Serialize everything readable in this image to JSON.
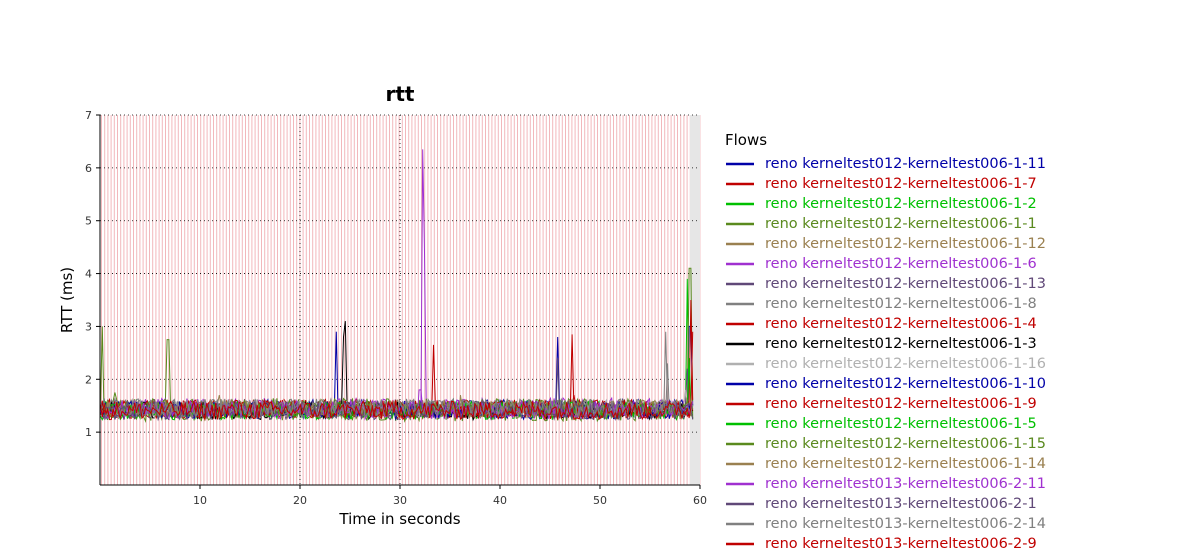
{
  "chart_data": {
    "type": "line",
    "title": "rtt",
    "xlabel": "Time in seconds",
    "ylabel": "RTT (ms)",
    "xlim": [
      0,
      60
    ],
    "ylim": [
      0,
      7
    ],
    "x_ticks": [
      10,
      20,
      30,
      40,
      50,
      60
    ],
    "y_ticks": [
      1,
      2,
      3,
      4,
      5,
      6,
      7
    ],
    "grid": "dotted major gridlines at x=20,30 and each y tick",
    "legend_title": "Flows",
    "legend_position": "right",
    "baseline_band": [
      1.1,
      1.6
    ],
    "series": [
      {
        "name": "reno kerneltest012-kerneltest006-1-11",
        "color": "#0000a8",
        "spikes": [
          [
            23.7,
            2.9
          ],
          [
            59.0,
            3.0
          ]
        ]
      },
      {
        "name": "reno kerneltest012-kerneltest006-1-7",
        "color": "#c00000",
        "spikes": [
          [
            33.3,
            2.65
          ],
          [
            58.6,
            1.7
          ]
        ]
      },
      {
        "name": "reno kerneltest012-kerneltest006-1-2",
        "color": "#00c000",
        "spikes": [
          [
            58.8,
            3.9
          ],
          [
            59.2,
            1.6
          ]
        ]
      },
      {
        "name": "reno kerneltest012-kerneltest006-1-1",
        "color": "#5a8a1e",
        "spikes": [
          [
            0.2,
            3.0
          ],
          [
            6.8,
            2.75
          ],
          [
            59.0,
            4.1
          ]
        ]
      },
      {
        "name": "reno kerneltest012-kerneltest006-1-12",
        "color": "#9a8050",
        "spikes": [
          [
            12.0,
            1.7
          ]
        ]
      },
      {
        "name": "reno kerneltest012-kerneltest006-1-6",
        "color": "#a030d0",
        "spikes": [
          [
            32.2,
            6.35
          ],
          [
            32.5,
            4.4
          ]
        ]
      },
      {
        "name": "reno kerneltest012-kerneltest006-1-13",
        "color": "#604878",
        "spikes": [
          [
            58.7,
            2.2
          ]
        ]
      },
      {
        "name": "reno kerneltest012-kerneltest006-1-8",
        "color": "#808080",
        "spikes": [
          [
            56.5,
            2.9
          ]
        ]
      },
      {
        "name": "reno kerneltest012-kerneltest006-1-4",
        "color": "#c00000",
        "spikes": [
          [
            59.1,
            3.5
          ],
          [
            47.2,
            2.85
          ]
        ]
      },
      {
        "name": "reno kerneltest012-kerneltest006-1-3",
        "color": "#000000",
        "spikes": [
          [
            24.6,
            3.1
          ],
          [
            24.3,
            2.8
          ]
        ]
      },
      {
        "name": "reno kerneltest012-kerneltest006-1-16",
        "color": "#b0b0b0",
        "spikes": [
          [
            58.5,
            1.8
          ]
        ]
      },
      {
        "name": "reno kerneltest012-kerneltest006-1-10",
        "color": "#0000a8",
        "spikes": [
          [
            45.8,
            2.8
          ]
        ]
      },
      {
        "name": "reno kerneltest012-kerneltest006-1-9",
        "color": "#c00000",
        "spikes": [
          [
            47.4,
            1.7
          ]
        ]
      },
      {
        "name": "reno kerneltest012-kerneltest006-1-5",
        "color": "#00c000",
        "spikes": [
          [
            58.9,
            2.4
          ]
        ]
      },
      {
        "name": "reno kerneltest012-kerneltest006-1-15",
        "color": "#5a8a1e",
        "spikes": [
          [
            1.5,
            1.75
          ]
        ]
      },
      {
        "name": "reno kerneltest012-kerneltest006-1-14",
        "color": "#9a8050",
        "spikes": [
          [
            36.0,
            1.7
          ]
        ]
      },
      {
        "name": "reno kerneltest013-kerneltest006-2-11",
        "color": "#a030d0",
        "spikes": [
          [
            32.0,
            1.8
          ]
        ]
      },
      {
        "name": "reno kerneltest013-kerneltest006-2-1",
        "color": "#604878",
        "spikes": [
          [
            45.7,
            2.4
          ]
        ]
      },
      {
        "name": "reno kerneltest013-kerneltest006-2-14",
        "color": "#808080",
        "spikes": [
          [
            56.8,
            2.3
          ]
        ]
      },
      {
        "name": "reno kerneltest013-kerneltest006-2-9",
        "color": "#c00000",
        "spikes": [
          [
            59.2,
            2.9
          ]
        ]
      }
    ]
  }
}
